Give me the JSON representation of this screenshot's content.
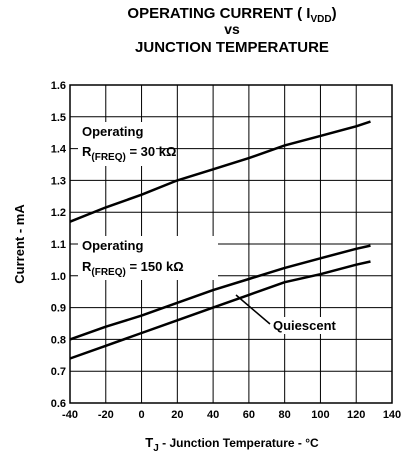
{
  "chart_data": {
    "type": "line",
    "title": {
      "main": "OPERATING CURRENT ( I",
      "sub": "VDD",
      "end": ")",
      "line2": "vs",
      "line3": "JUNCTION TEMPERATURE"
    },
    "x_label": {
      "main": "T",
      "sub": "J",
      "end": " - Junction Temperature - °C"
    },
    "y_label": "Current - mA",
    "xlim": [
      -40,
      140
    ],
    "xticks": [
      -40,
      -20,
      0,
      20,
      40,
      60,
      80,
      100,
      120,
      140
    ],
    "ylim": [
      0.6,
      1.6
    ],
    "yticks": [
      0.6,
      0.7,
      0.8,
      0.9,
      {
        "value": 1,
        "label": "1.0"
      },
      1.1,
      1.2,
      1.3,
      1.4,
      1.5,
      1.6
    ],
    "grid": true,
    "x": [
      -40,
      -20,
      0,
      20,
      40,
      60,
      80,
      100,
      120,
      128
    ],
    "series": [
      {
        "color": "#000000",
        "values": [
          1.17,
          1.215,
          1.255,
          1.3,
          1.335,
          1.37,
          1.41,
          1.44,
          1.47,
          1.485
        ]
      },
      {
        "color": "#000000",
        "values": [
          0.8,
          0.84,
          0.875,
          0.915,
          0.955,
          0.99,
          1.025,
          1.055,
          1.085,
          1.095
        ]
      },
      {
        "color": "#000000",
        "values": [
          0.74,
          0.78,
          0.82,
          0.86,
          0.9,
          0.94,
          0.98,
          1.005,
          1.035,
          1.045
        ]
      }
    ],
    "annotations": [
      {
        "line1": "Operating",
        "r": "R",
        "sub": "(FREQ)",
        "rest": " = 30 kΩ"
      },
      {
        "line1": "Operating",
        "r": "R",
        "sub": "(FREQ)",
        "rest": " = 150 kΩ"
      },
      {
        "text": "Quiescent"
      }
    ]
  }
}
